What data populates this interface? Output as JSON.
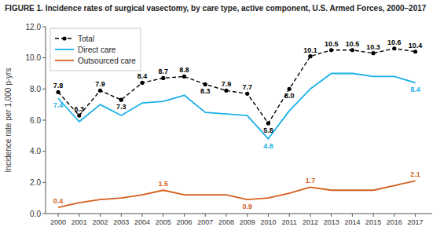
{
  "chart_data": {
    "type": "line",
    "title": "FIGURE 1. Incidence rates of surgical vasectomy, by care type, active component, U.S. Armed Forces, 2000–2017",
    "ylabel": "Incidence rate per 1,000 p-yrs",
    "x": [
      2000,
      2001,
      2002,
      2003,
      2004,
      2005,
      2006,
      2007,
      2008,
      2009,
      2010,
      2011,
      2012,
      2013,
      2014,
      2015,
      2016,
      2017
    ],
    "xlim": [
      1999.4,
      2017.8
    ],
    "xticks": [
      2000,
      2001,
      2002,
      2003,
      2004,
      2005,
      2006,
      2007,
      2008,
      2009,
      2010,
      2011,
      2012,
      2013,
      2014,
      2015,
      2016,
      2017
    ],
    "ylim": [
      0,
      12.0
    ],
    "yticks": [
      {
        "value": 0,
        "label": "0.0"
      },
      {
        "value": 2.0,
        "label": "2.0"
      },
      {
        "value": 4.0,
        "label": "4.0"
      },
      {
        "value": 6.0,
        "label": "6.0"
      },
      {
        "value": 8.0,
        "label": "8.0"
      },
      {
        "value": 10.0,
        "label": "10.0"
      },
      {
        "value": 12.0,
        "label": "12.0"
      }
    ],
    "grid": false,
    "legend": "upper left",
    "data_labels": true,
    "series": [
      {
        "name": "Total",
        "color": "#000000",
        "marker": "circle",
        "line_style": "dashed",
        "values": [
          7.8,
          6.3,
          7.9,
          7.3,
          8.4,
          8.7,
          8.8,
          8.3,
          7.9,
          7.7,
          5.8,
          8.0,
          10.1,
          10.5,
          10.5,
          10.3,
          10.6,
          10.4
        ],
        "value_labels": [
          "7.8",
          "6.3",
          "7.9",
          "7.3",
          "8.4",
          "8.7",
          "8.8",
          "8.3",
          "7.9",
          "7.7",
          "5.8",
          "8.0",
          "10.1",
          "10.5",
          "10.5",
          "10.3",
          "10.6",
          "10.4"
        ]
      },
      {
        "name": "Direct care",
        "color": "#1ab0e8",
        "marker": "none",
        "line_style": "solid",
        "values": [
          7.4,
          5.9,
          7.0,
          6.3,
          7.1,
          7.2,
          7.6,
          6.5,
          6.4,
          6.3,
          4.8,
          6.6,
          8.0,
          9.0,
          9.0,
          8.8,
          8.8,
          8.4
        ],
        "value_labels": [
          "7.4",
          null,
          null,
          null,
          null,
          null,
          null,
          null,
          null,
          null,
          "4.8",
          null,
          null,
          null,
          null,
          null,
          null,
          "8.4"
        ]
      },
      {
        "name": "Outsourced care",
        "color": "#d45f1e",
        "marker": "none",
        "line_style": "solid",
        "values": [
          0.4,
          0.7,
          0.9,
          1.0,
          1.2,
          1.5,
          1.2,
          1.2,
          1.2,
          0.9,
          1.0,
          1.3,
          1.7,
          1.5,
          1.5,
          1.5,
          1.8,
          2.1
        ],
        "value_labels": [
          "0.4",
          null,
          null,
          null,
          null,
          "1.5",
          null,
          null,
          null,
          "0.9",
          null,
          null,
          "1.7",
          null,
          null,
          null,
          null,
          "2.1"
        ]
      }
    ]
  }
}
